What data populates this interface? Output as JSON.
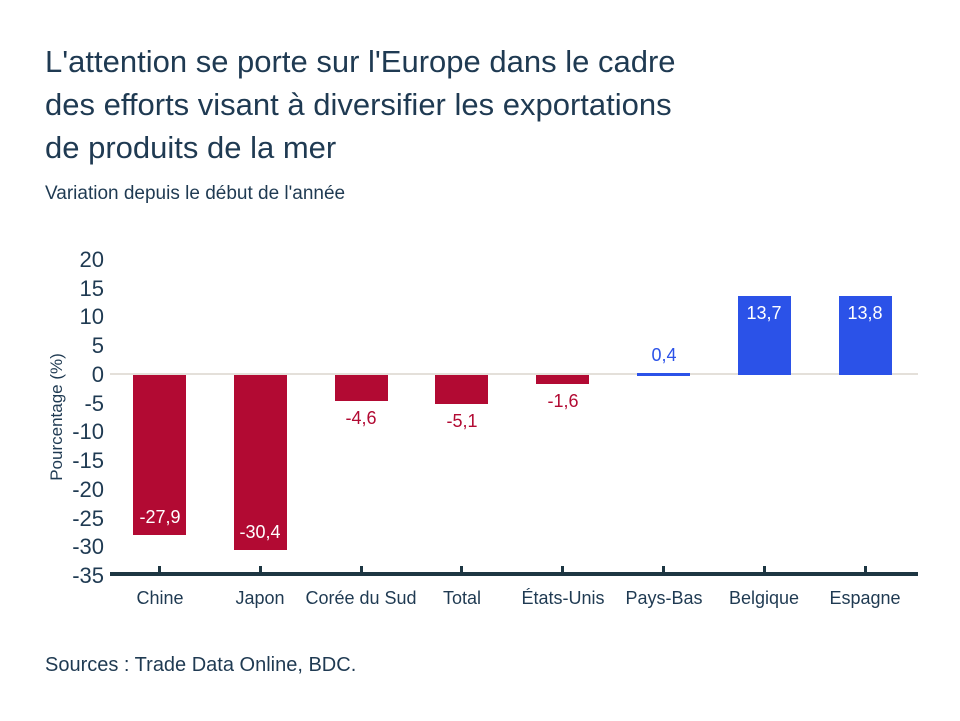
{
  "header": {
    "title_lines": [
      "L'attention se porte sur l'Europe dans le cadre",
      "des efforts visant à diversifier les exportations",
      "de produits de la mer"
    ],
    "subtitle": "Variation depuis le début de l'année"
  },
  "footer": {
    "source": "Sources : Trade Data Online, BDC."
  },
  "colors": {
    "text": "#1f3a52",
    "negative_bar": "#b20a33",
    "positive_bar": "#2b52e8",
    "axis_line": "#1d3642",
    "zero_gridline": "#e4e0da",
    "label_on_bar": "#ffffff"
  },
  "chart_data": {
    "type": "bar",
    "title": "L'attention se porte sur l'Europe dans le cadre des efforts visant à diversifier les exportations de produits de la mer",
    "subtitle": "Variation depuis le début de l'année",
    "xlabel": "",
    "ylabel": "Pourcentage (%)",
    "ylim": [
      -35,
      20
    ],
    "ytick_step": 5,
    "yticks": [
      20,
      15,
      10,
      5,
      0,
      -5,
      -10,
      -15,
      -20,
      -25,
      -30,
      -35
    ],
    "ytick_labels": [
      "20",
      "15",
      "10",
      "5",
      "0",
      "-5",
      "-10",
      "-15",
      "-20",
      "-25",
      "-30",
      "-35"
    ],
    "grid": "zero-baseline-only",
    "legend": "none",
    "categories": [
      "Chine",
      "Japon",
      "Corée du Sud",
      "Total",
      "États-Unis",
      "Pays-Bas",
      "Belgique",
      "Espagne"
    ],
    "values": [
      -27.9,
      -30.4,
      -4.6,
      -5.1,
      -1.6,
      0.4,
      13.7,
      13.8
    ],
    "points": [
      {
        "category": "Chine",
        "value": -27.9,
        "label": "-27,9",
        "placement": "inside-bottom",
        "color": "negative"
      },
      {
        "category": "Japon",
        "value": -30.4,
        "label": "-30,4",
        "placement": "inside-bottom",
        "color": "negative"
      },
      {
        "category": "Corée du Sud",
        "value": -4.6,
        "label": "-4,6",
        "placement": "below",
        "color": "negative"
      },
      {
        "category": "Total",
        "value": -5.1,
        "label": "-5,1",
        "placement": "below",
        "color": "negative"
      },
      {
        "category": "États-Unis",
        "value": -1.6,
        "label": "-1,6",
        "placement": "below",
        "color": "negative"
      },
      {
        "category": "Pays-Bas",
        "value": 0.4,
        "label": "0,4",
        "placement": "above",
        "color": "positive"
      },
      {
        "category": "Belgique",
        "value": 13.7,
        "label": "13,7",
        "placement": "inside-top",
        "color": "positive"
      },
      {
        "category": "Espagne",
        "value": 13.8,
        "label": "13,8",
        "placement": "inside-top",
        "color": "positive"
      }
    ]
  }
}
